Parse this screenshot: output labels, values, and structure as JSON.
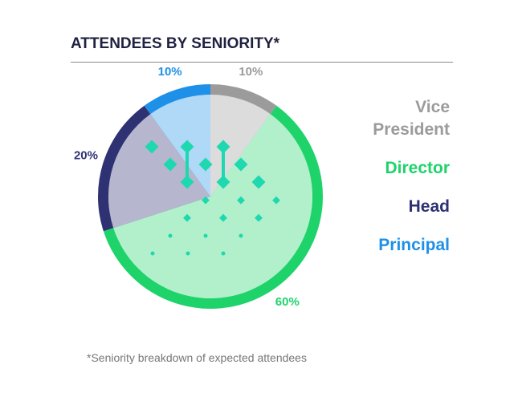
{
  "chart_data": {
    "type": "pie",
    "title": "ATTENDEES BY SENIORITY*",
    "categories": [
      "Vice President",
      "Director",
      "Head",
      "Principal"
    ],
    "values": [
      10,
      60,
      20,
      10
    ],
    "value_labels": [
      "10%",
      "60%",
      "20%",
      "10%"
    ],
    "colors": [
      "#9b9b9b",
      "#1fd36b",
      "#2e3272",
      "#1e90e8"
    ],
    "footnote": "*Seniority breakdown of expected attendees"
  }
}
